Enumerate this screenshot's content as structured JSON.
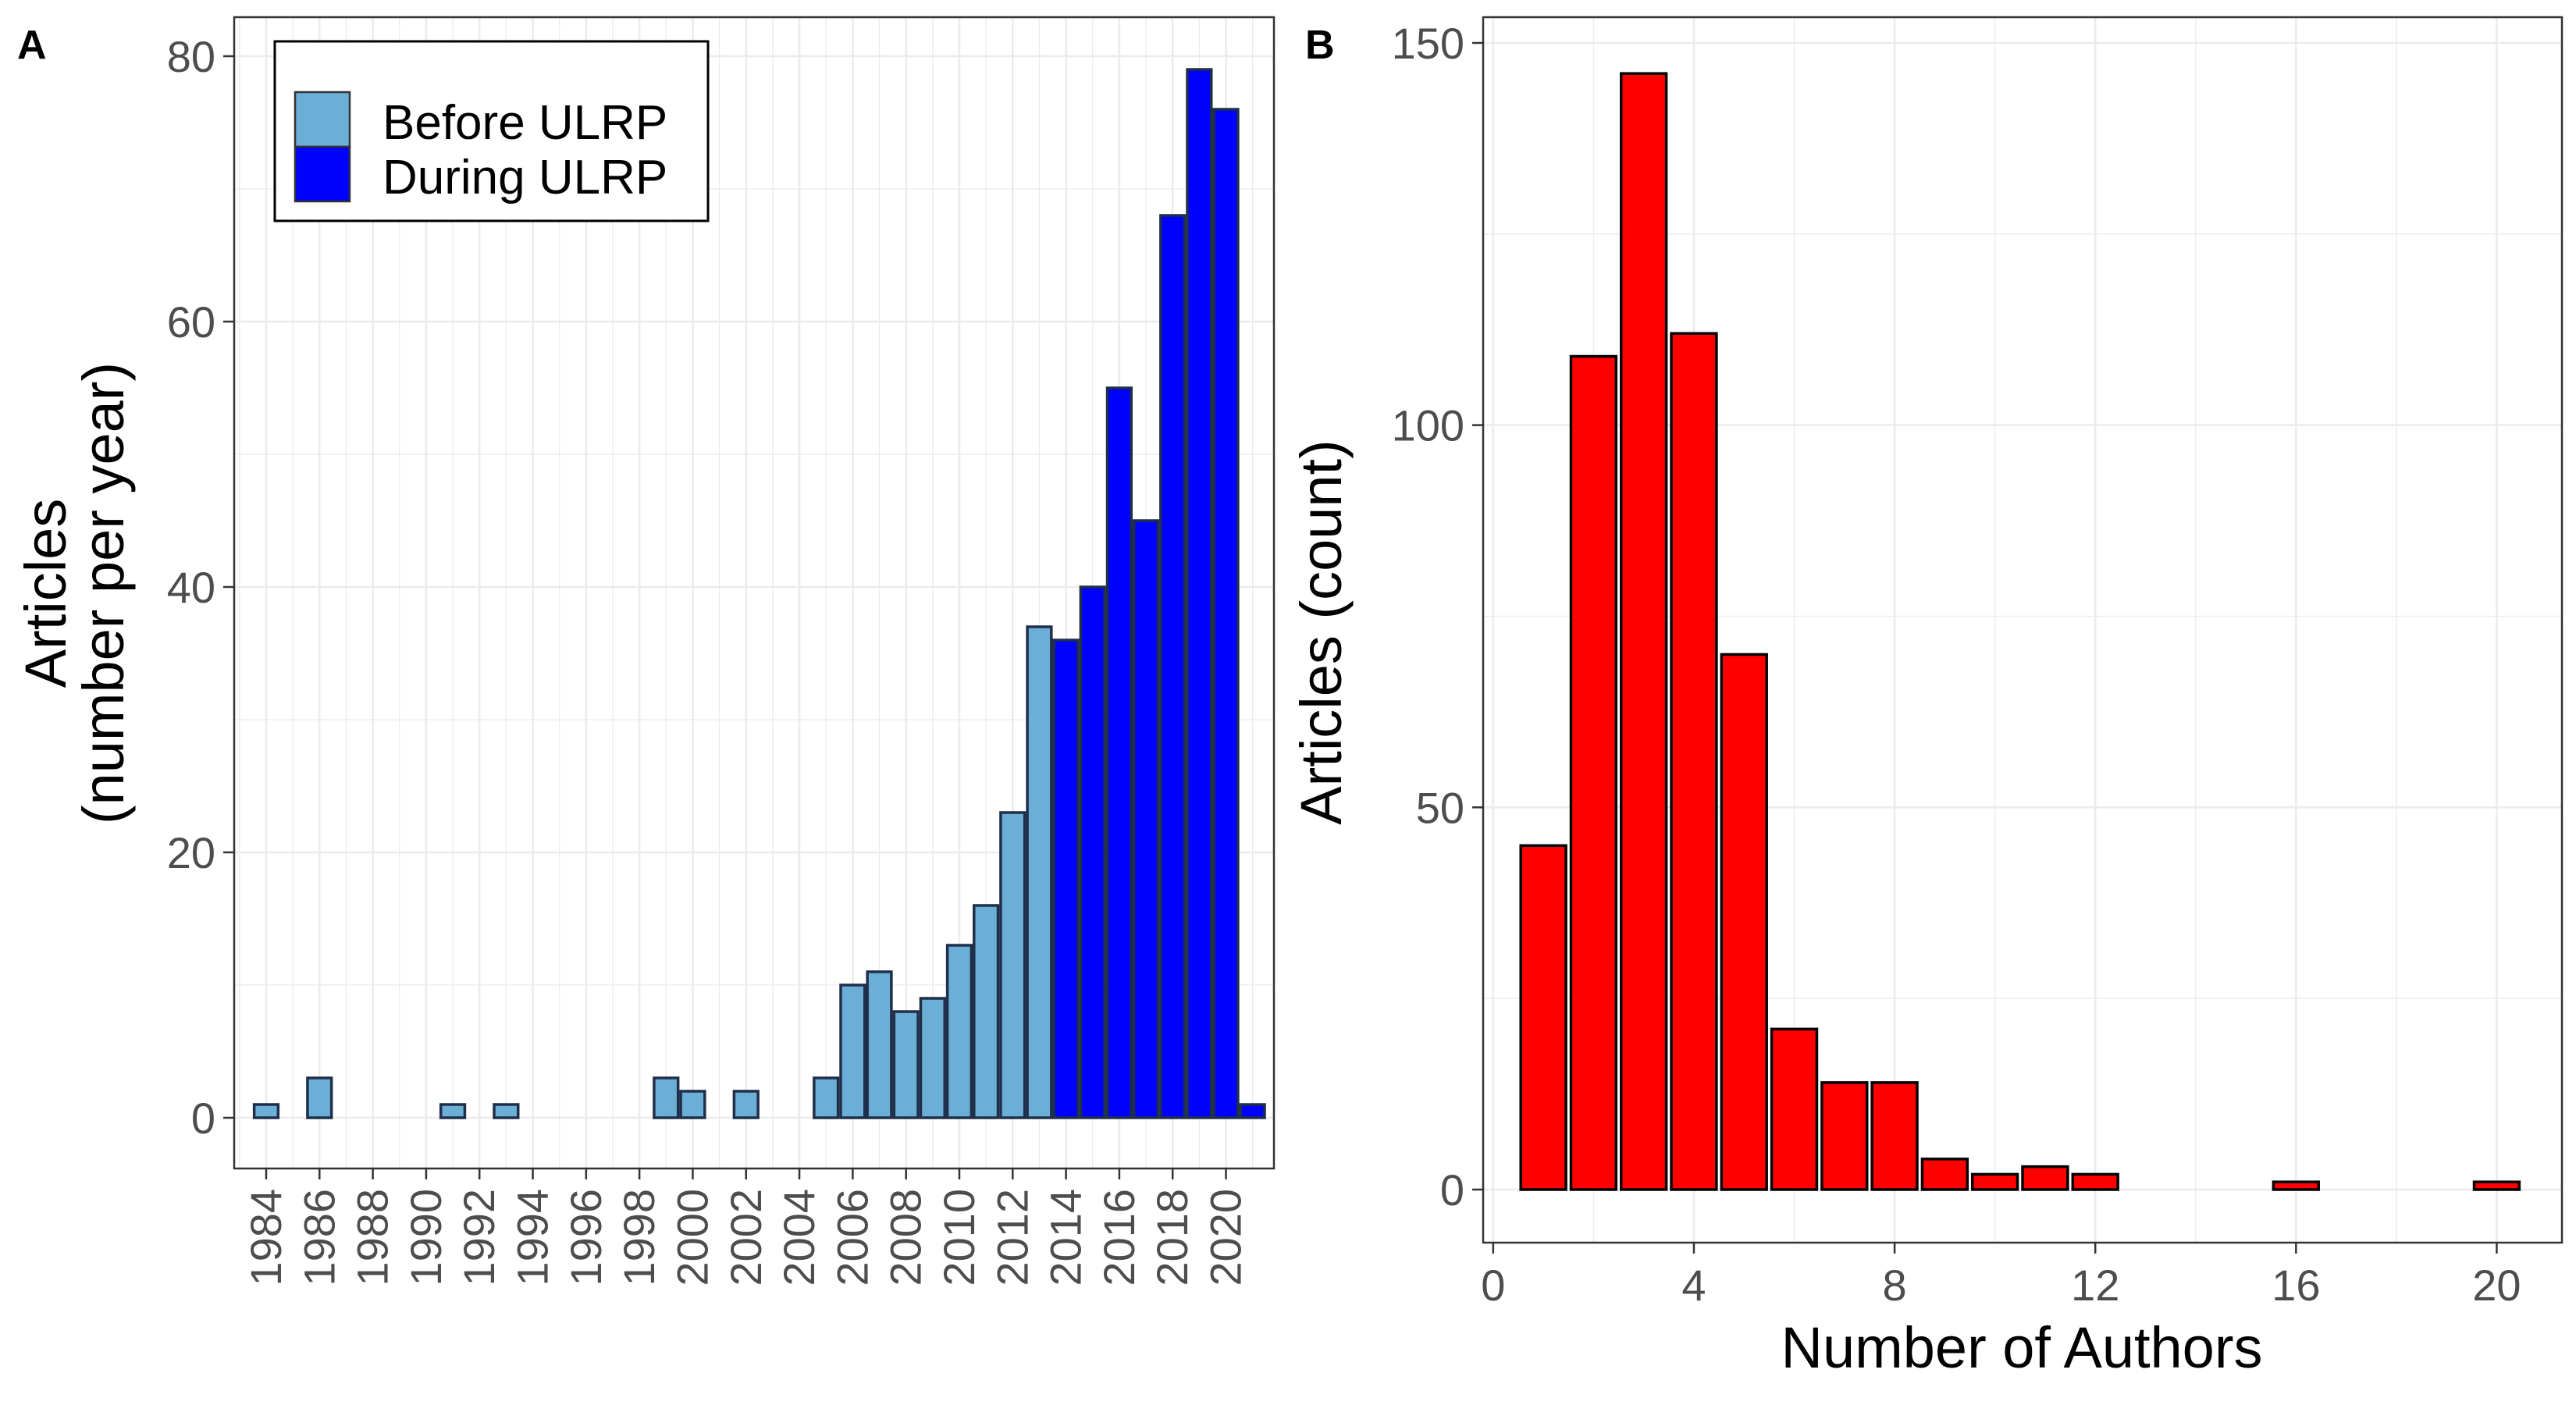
{
  "chart_data": [
    {
      "panel": "A",
      "type": "bar",
      "ylabel_lines": [
        "Articles",
        "(number per year)"
      ],
      "xlabel": "",
      "ylim": [
        0,
        80
      ],
      "yticks": [
        0,
        20,
        40,
        60,
        80
      ],
      "xlim": [
        1982.8,
        2021.8
      ],
      "xticks": [
        1984,
        1986,
        1988,
        1990,
        1992,
        1994,
        1996,
        1998,
        2000,
        2002,
        2004,
        2006,
        2008,
        2010,
        2012,
        2014,
        2016,
        2018,
        2020
      ],
      "grid": true,
      "legend_position": "top-left",
      "series": [
        {
          "name": "Before ULRP",
          "color": "#6baed6",
          "x": [
            1984,
            1986,
            1991,
            1993,
            1999,
            2000,
            2002,
            2005,
            2006,
            2007,
            2008,
            2009,
            2010,
            2011,
            2012,
            2013
          ],
          "values": [
            1,
            3,
            1,
            1,
            3,
            2,
            2,
            3,
            10,
            11,
            8,
            9,
            13,
            16,
            23,
            37
          ]
        },
        {
          "name": "During ULRP",
          "color": "#0000ff",
          "x": [
            2014,
            2015,
            2016,
            2017,
            2018,
            2019,
            2020,
            2021
          ],
          "values": [
            36,
            40,
            55,
            45,
            68,
            79,
            76,
            1
          ]
        }
      ]
    },
    {
      "panel": "B",
      "type": "bar",
      "ylabel": "Articles (count)",
      "xlabel": "Number of Authors",
      "ylim": [
        0,
        150
      ],
      "yticks": [
        0,
        50,
        100,
        150
      ],
      "xlim": [
        -0.2,
        21.3
      ],
      "xticks": [
        0,
        4,
        8,
        12,
        16,
        20
      ],
      "grid": true,
      "color": "#ff0000",
      "x": [
        1,
        2,
        3,
        4,
        5,
        6,
        7,
        8,
        9,
        10,
        11,
        12,
        16,
        20
      ],
      "values": [
        45,
        109,
        146,
        112,
        70,
        21,
        14,
        14,
        4,
        2,
        3,
        2,
        1,
        1
      ]
    }
  ]
}
